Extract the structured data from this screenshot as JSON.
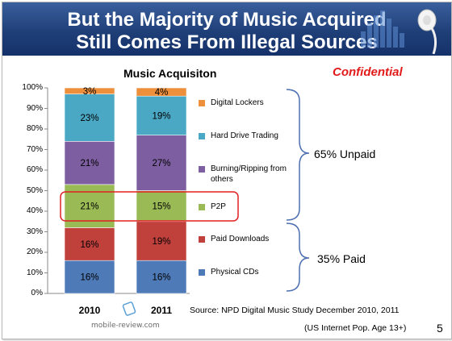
{
  "slide": {
    "title_line1": "But the Majority of Music Acquired",
    "title_line2": "Still Comes From Illegal Sources",
    "confidential": "Confidential",
    "page_number": "5",
    "source": "Source:  NPD Digital Music Study December  2010, 2011",
    "population_note": "(US Internet Pop. Age 13+)",
    "watermark": "mobile-review.com"
  },
  "chart_data": {
    "type": "bar",
    "stacked": true,
    "title": "Music Acquisiton",
    "categories": [
      "2010",
      "2011"
    ],
    "ylim": [
      0,
      100
    ],
    "yticks": [
      "0%",
      "10%",
      "20%",
      "30%",
      "40%",
      "50%",
      "60%",
      "70%",
      "80%",
      "90%",
      "100%"
    ],
    "series": [
      {
        "name": "Physical CDs",
        "values": [
          16,
          16
        ],
        "labels": [
          "16%",
          "16%"
        ],
        "color": "#4e7ab8"
      },
      {
        "name": "Paid Downloads",
        "values": [
          16,
          19
        ],
        "labels": [
          "16%",
          "19%"
        ],
        "color": "#c0403c"
      },
      {
        "name": "P2P",
        "values": [
          21,
          15
        ],
        "labels": [
          "21%",
          "15%"
        ],
        "color": "#99ba55"
      },
      {
        "name": "Burning/Ripping from others",
        "values": [
          21,
          27
        ],
        "labels": [
          "21%",
          "27%"
        ],
        "color": "#7d5ea0"
      },
      {
        "name": "Hard Drive Trading",
        "values": [
          23,
          19
        ],
        "labels": [
          "23%",
          "19%"
        ],
        "color": "#4aa8c4"
      },
      {
        "name": "Digital Lockers",
        "values": [
          3,
          4
        ],
        "labels": [
          "3%",
          "4%"
        ],
        "color": "#ee8f3c"
      }
    ],
    "groups": [
      {
        "label": "65% Unpaid",
        "members": [
          "Digital Lockers",
          "Hard Drive Trading",
          "Burning/Ripping from others",
          "P2P"
        ]
      },
      {
        "label": "35% Paid",
        "members": [
          "Paid Downloads",
          "Physical CDs"
        ]
      }
    ],
    "highlight": "P2P",
    "highlight_color": "#e02020",
    "grid": false
  }
}
